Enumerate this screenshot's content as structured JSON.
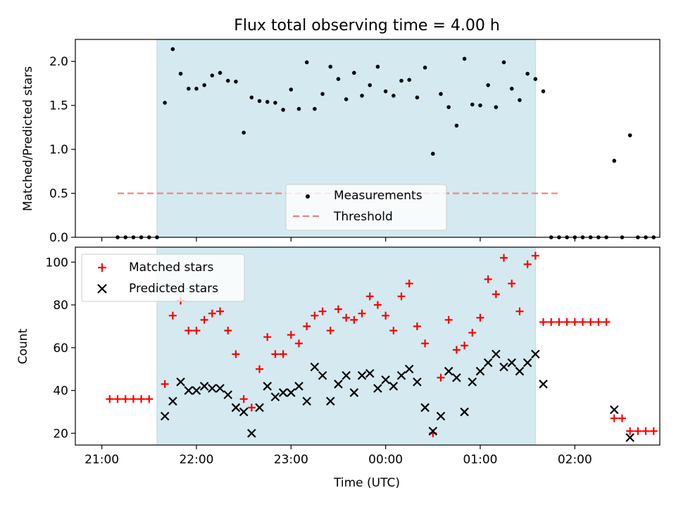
{
  "title": "Flux total observing time = 4.00 h",
  "xlabel": "Time (UTC)",
  "x_ticks": [
    "21:00",
    "22:00",
    "23:00",
    "00:00",
    "01:00",
    "02:00"
  ],
  "colors": {
    "span": "#d4eaf0",
    "threshold": "#f08080",
    "matched": "#ff0000",
    "predicted": "#000000",
    "measurements": "#000000"
  },
  "chart_data": [
    {
      "type": "scatter",
      "panel": "top",
      "ylabel": "Matched/Predicted stars",
      "ylim": [
        0,
        2.25
      ],
      "y_ticks": [
        "0.0",
        "0.5",
        "1.0",
        "1.5",
        "2.0"
      ],
      "x_units": "minutes after 21:00 UTC",
      "observing_window": [
        35,
        275
      ],
      "threshold": 0.5,
      "threshold_range": [
        10,
        290
      ],
      "legend": {
        "location": "lower center",
        "entries": [
          "Measurements",
          "Threshold"
        ]
      },
      "series": [
        {
          "name": "Measurements",
          "marker": "dot",
          "points": [
            [
              10,
              0
            ],
            [
              15,
              0
            ],
            [
              20,
              0
            ],
            [
              25,
              0
            ],
            [
              30,
              0
            ],
            [
              35,
              0
            ],
            [
              40,
              1.53
            ],
            [
              45,
              2.14
            ],
            [
              50,
              1.86
            ],
            [
              55,
              1.69
            ],
            [
              60,
              1.69
            ],
            [
              65,
              1.73
            ],
            [
              70,
              1.84
            ],
            [
              75,
              1.87
            ],
            [
              80,
              1.78
            ],
            [
              85,
              1.77
            ],
            [
              90,
              1.19
            ],
            [
              95,
              1.59
            ],
            [
              100,
              1.55
            ],
            [
              105,
              1.54
            ],
            [
              110,
              1.53
            ],
            [
              115,
              1.45
            ],
            [
              120,
              1.68
            ],
            [
              125,
              1.46
            ],
            [
              130,
              1.99
            ],
            [
              135,
              1.46
            ],
            [
              140,
              1.63
            ],
            [
              145,
              1.94
            ],
            [
              150,
              1.8
            ],
            [
              155,
              1.57
            ],
            [
              160,
              1.87
            ],
            [
              165,
              1.61
            ],
            [
              170,
              1.73
            ],
            [
              175,
              1.94
            ],
            [
              180,
              1.66
            ],
            [
              185,
              1.61
            ],
            [
              190,
              1.78
            ],
            [
              195,
              1.79
            ],
            [
              200,
              1.59
            ],
            [
              205,
              1.93
            ],
            [
              210,
              0.95
            ],
            [
              215,
              1.63
            ],
            [
              220,
              1.48
            ],
            [
              225,
              1.27
            ],
            [
              230,
              2.03
            ],
            [
              235,
              1.51
            ],
            [
              240,
              1.5
            ],
            [
              245,
              1.73
            ],
            [
              250,
              1.48
            ],
            [
              255,
              1.99
            ],
            [
              260,
              1.69
            ],
            [
              265,
              1.56
            ],
            [
              270,
              1.86
            ],
            [
              275,
              1.8
            ],
            [
              280,
              1.66
            ],
            [
              285,
              0
            ],
            [
              290,
              0
            ],
            [
              295,
              0
            ],
            [
              300,
              0
            ],
            [
              305,
              0
            ],
            [
              310,
              0
            ],
            [
              315,
              0
            ],
            [
              320,
              0
            ],
            [
              325,
              0.87
            ],
            [
              330,
              0
            ],
            [
              335,
              1.16
            ],
            [
              340,
              0
            ],
            [
              345,
              0
            ],
            [
              350,
              0
            ]
          ]
        }
      ]
    },
    {
      "type": "scatter",
      "panel": "bottom",
      "ylabel": "Count",
      "ylim": [
        14.5,
        107
      ],
      "y_ticks": [
        "20",
        "40",
        "60",
        "80",
        "100"
      ],
      "x_units": "minutes after 21:00 UTC",
      "observing_window": [
        35,
        275
      ],
      "legend": {
        "location": "upper left",
        "entries": [
          "Matched stars",
          "Predicted stars"
        ]
      },
      "series": [
        {
          "name": "Matched stars",
          "marker": "plus",
          "points": [
            [
              5,
              36
            ],
            [
              10,
              36
            ],
            [
              15,
              36
            ],
            [
              20,
              36
            ],
            [
              25,
              36
            ],
            [
              30,
              36
            ],
            [
              40,
              43
            ],
            [
              45,
              75
            ],
            [
              50,
              82
            ],
            [
              55,
              68
            ],
            [
              60,
              68
            ],
            [
              65,
              73
            ],
            [
              70,
              76
            ],
            [
              75,
              77
            ],
            [
              80,
              68
            ],
            [
              85,
              57
            ],
            [
              90,
              36
            ],
            [
              95,
              32
            ],
            [
              100,
              50
            ],
            [
              105,
              65
            ],
            [
              110,
              57
            ],
            [
              115,
              57
            ],
            [
              120,
              66
            ],
            [
              125,
              62
            ],
            [
              130,
              70
            ],
            [
              135,
              75
            ],
            [
              140,
              77
            ],
            [
              145,
              68
            ],
            [
              150,
              78
            ],
            [
              155,
              74
            ],
            [
              160,
              73
            ],
            [
              165,
              76
            ],
            [
              170,
              84
            ],
            [
              175,
              80
            ],
            [
              180,
              75
            ],
            [
              185,
              68
            ],
            [
              190,
              84
            ],
            [
              195,
              90
            ],
            [
              200,
              70
            ],
            [
              205,
              62
            ],
            [
              210,
              20
            ],
            [
              215,
              46
            ],
            [
              220,
              73
            ],
            [
              225,
              59
            ],
            [
              230,
              61
            ],
            [
              235,
              67
            ],
            [
              240,
              74
            ],
            [
              245,
              92
            ],
            [
              250,
              85
            ],
            [
              255,
              102
            ],
            [
              260,
              90
            ],
            [
              265,
              77
            ],
            [
              270,
              99
            ],
            [
              275,
              103
            ],
            [
              280,
              72
            ],
            [
              285,
              72
            ],
            [
              290,
              72
            ],
            [
              295,
              72
            ],
            [
              300,
              72
            ],
            [
              305,
              72
            ],
            [
              310,
              72
            ],
            [
              315,
              72
            ],
            [
              320,
              72
            ],
            [
              325,
              27
            ],
            [
              330,
              27
            ],
            [
              335,
              21
            ],
            [
              340,
              21
            ],
            [
              345,
              21
            ],
            [
              350,
              21
            ]
          ]
        },
        {
          "name": "Predicted stars",
          "marker": "x",
          "points": [
            [
              40,
              28
            ],
            [
              45,
              35
            ],
            [
              50,
              44
            ],
            [
              55,
              40
            ],
            [
              60,
              40
            ],
            [
              65,
              42
            ],
            [
              70,
              41
            ],
            [
              75,
              41
            ],
            [
              80,
              38
            ],
            [
              85,
              32
            ],
            [
              90,
              30
            ],
            [
              95,
              20
            ],
            [
              100,
              32
            ],
            [
              105,
              42
            ],
            [
              110,
              37
            ],
            [
              115,
              39
            ],
            [
              120,
              39
            ],
            [
              125,
              42
            ],
            [
              130,
              35
            ],
            [
              135,
              51
            ],
            [
              140,
              47
            ],
            [
              145,
              35
            ],
            [
              150,
              43
            ],
            [
              155,
              47
            ],
            [
              160,
              39
            ],
            [
              165,
              47
            ],
            [
              170,
              48
            ],
            [
              175,
              41
            ],
            [
              180,
              45
            ],
            [
              185,
              42
            ],
            [
              190,
              47
            ],
            [
              195,
              50
            ],
            [
              200,
              44
            ],
            [
              205,
              32
            ],
            [
              210,
              21
            ],
            [
              215,
              28
            ],
            [
              220,
              49
            ],
            [
              225,
              46
            ],
            [
              230,
              30
            ],
            [
              235,
              44
            ],
            [
              240,
              49
            ],
            [
              245,
              53
            ],
            [
              250,
              57
            ],
            [
              255,
              51
            ],
            [
              260,
              53
            ],
            [
              265,
              49
            ],
            [
              270,
              53
            ],
            [
              275,
              57
            ],
            [
              280,
              43
            ],
            [
              325,
              31
            ],
            [
              335,
              18
            ]
          ]
        }
      ]
    }
  ]
}
